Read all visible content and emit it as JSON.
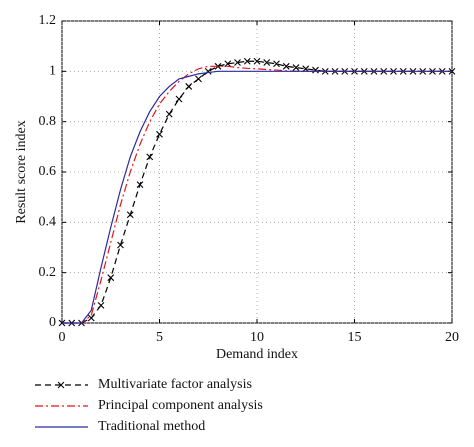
{
  "chart_data": {
    "type": "line",
    "x_label": "Demand index",
    "y_label": "Result score index",
    "x": [
      0,
      0.5,
      1,
      1.5,
      2,
      2.5,
      3,
      3.5,
      4,
      4.5,
      5,
      5.5,
      6,
      6.5,
      7,
      7.5,
      8,
      8.5,
      9,
      9.5,
      10,
      10.5,
      11,
      11.5,
      12,
      12.5,
      13,
      13.5,
      14,
      14.5,
      15,
      15.5,
      16,
      16.5,
      17,
      17.5,
      18,
      18.5,
      19,
      19.5,
      20
    ],
    "series": [
      {
        "name": "Multivariate factor analysis",
        "color": "#000000",
        "dash": "6,4",
        "marker": "x",
        "values": [
          0,
          0,
          0,
          0.02,
          0.07,
          0.18,
          0.31,
          0.43,
          0.55,
          0.66,
          0.75,
          0.83,
          0.89,
          0.94,
          0.97,
          1.0,
          1.02,
          1.03,
          1.035,
          1.04,
          1.04,
          1.035,
          1.03,
          1.02,
          1.015,
          1.01,
          1.005,
          1.0,
          1.0,
          1.0,
          1.0,
          1.0,
          1.0,
          1.0,
          1.0,
          1.0,
          1.0,
          1.0,
          1.0,
          1.0,
          1.0
        ]
      },
      {
        "name": "Principal component analysis",
        "color": "#e8141a",
        "dash": "8,3,2,3",
        "marker": "none",
        "values": [
          0,
          0,
          0,
          0.03,
          0.17,
          0.32,
          0.47,
          0.6,
          0.71,
          0.8,
          0.87,
          0.92,
          0.96,
          0.99,
          1.01,
          1.02,
          1.02,
          1.02,
          1.015,
          1.012,
          1.01,
          1.007,
          1.005,
          1.002,
          1.0,
          1.0,
          1.0,
          1.0,
          1.0,
          1.0,
          1.0,
          1.0,
          1.0,
          1.0,
          1.0,
          1.0,
          1.0,
          1.0,
          1.0,
          1.0,
          1.0
        ]
      },
      {
        "name": "Traditional method",
        "color": "#2b2b9e",
        "dash": "none",
        "marker": "none",
        "values": [
          0,
          0,
          0,
          0.05,
          0.22,
          0.38,
          0.53,
          0.66,
          0.76,
          0.84,
          0.9,
          0.94,
          0.97,
          0.98,
          0.99,
          0.995,
          1.0,
          1.0,
          1.0,
          1.0,
          1.0,
          1.0,
          1.0,
          1.0,
          1.0,
          1.0,
          1.0,
          1.0,
          1.0,
          1.0,
          1.0,
          1.0,
          1.0,
          1.0,
          1.0,
          1.0,
          1.0,
          1.0,
          1.0,
          1.0,
          1.0
        ]
      }
    ],
    "xlim": [
      0,
      20
    ],
    "xticks": [
      0,
      5,
      10,
      15,
      20
    ],
    "ylim": [
      0,
      1.2
    ],
    "yticks": [
      0,
      0.2,
      0.4,
      0.6,
      0.8,
      1,
      1.2
    ],
    "grid": true,
    "legend": "bottom"
  }
}
